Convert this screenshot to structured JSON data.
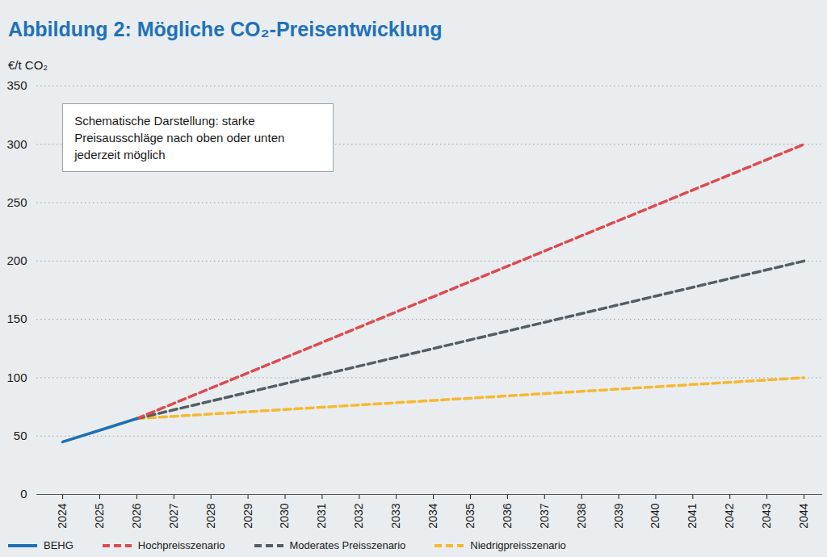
{
  "chart_data": {
    "type": "line",
    "title": "Abbildung 2: Mögliche CO₂-Preisentwicklung",
    "ylabel": "€/t CO₂",
    "annotations": [
      "Schematische Darstellung: starke\nPreisausschläge nach oben oder unten\njederzeit möglich"
    ],
    "xlim": [
      2023.3,
      2044.5
    ],
    "xticks": [
      2024,
      2025,
      2026,
      2027,
      2028,
      2029,
      2030,
      2031,
      2032,
      2033,
      2034,
      2035,
      2036,
      2037,
      2038,
      2039,
      2040,
      2041,
      2042,
      2043,
      2044
    ],
    "ylim": [
      0,
      350
    ],
    "yticks": [
      0,
      50,
      100,
      150,
      200,
      250,
      300,
      350
    ],
    "grid": true,
    "legend": "bottom",
    "series": [
      {
        "name": "BEHG",
        "color": "#1f6fb3",
        "line_style": "solid",
        "x": [
          2024,
          2025,
          2026
        ],
        "values": [
          45,
          55,
          65
        ]
      },
      {
        "name": "Hochpreisszenario",
        "color": "#dd4b4f",
        "line_style": "dashed",
        "x": [
          2026,
          2044
        ],
        "values": [
          65,
          300
        ]
      },
      {
        "name": "Moderates Preisszenario",
        "color": "#535d64",
        "line_style": "dashed",
        "x": [
          2026,
          2044
        ],
        "values": [
          65,
          200
        ]
      },
      {
        "name": "Niedrigpreisszenario",
        "color": "#f6b830",
        "line_style": "dashed",
        "x": [
          2026,
          2044
        ],
        "values": [
          65,
          100
        ]
      }
    ]
  }
}
